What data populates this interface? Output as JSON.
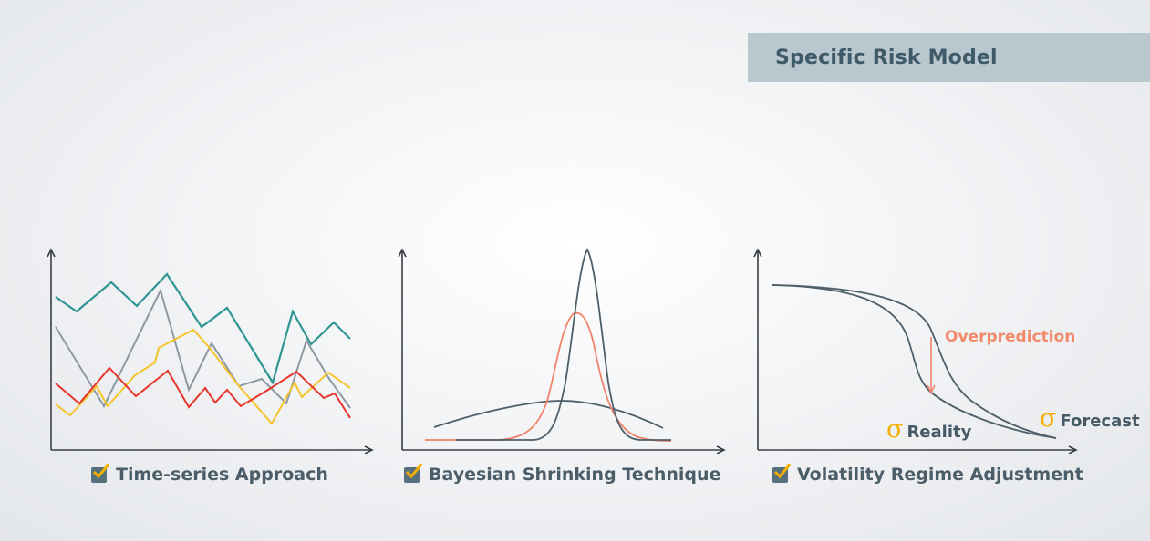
{
  "title": "Specific Risk Model",
  "panels": [
    {
      "caption": "Time-series Approach"
    },
    {
      "caption": "Bayesian Shrinking Technique"
    },
    {
      "caption": "Volatility Regime Adjustment",
      "annotation": "Overprediction",
      "sigma_symbol": "σ",
      "reality_label": "Reality",
      "forecast_label": "Forecast"
    }
  ],
  "colors": {
    "banner": "#b9c7cf",
    "title_text": "#3f5a68",
    "teal": "#2f9592",
    "gray": "#8d99a2",
    "yellow": "#f5c42c",
    "red": "#e8352b",
    "orange": "#f0836a",
    "dark_curve": "#4d5f68",
    "sigma": "#f3b000",
    "checkbox": "#58707d",
    "check": "#f3b000"
  }
}
